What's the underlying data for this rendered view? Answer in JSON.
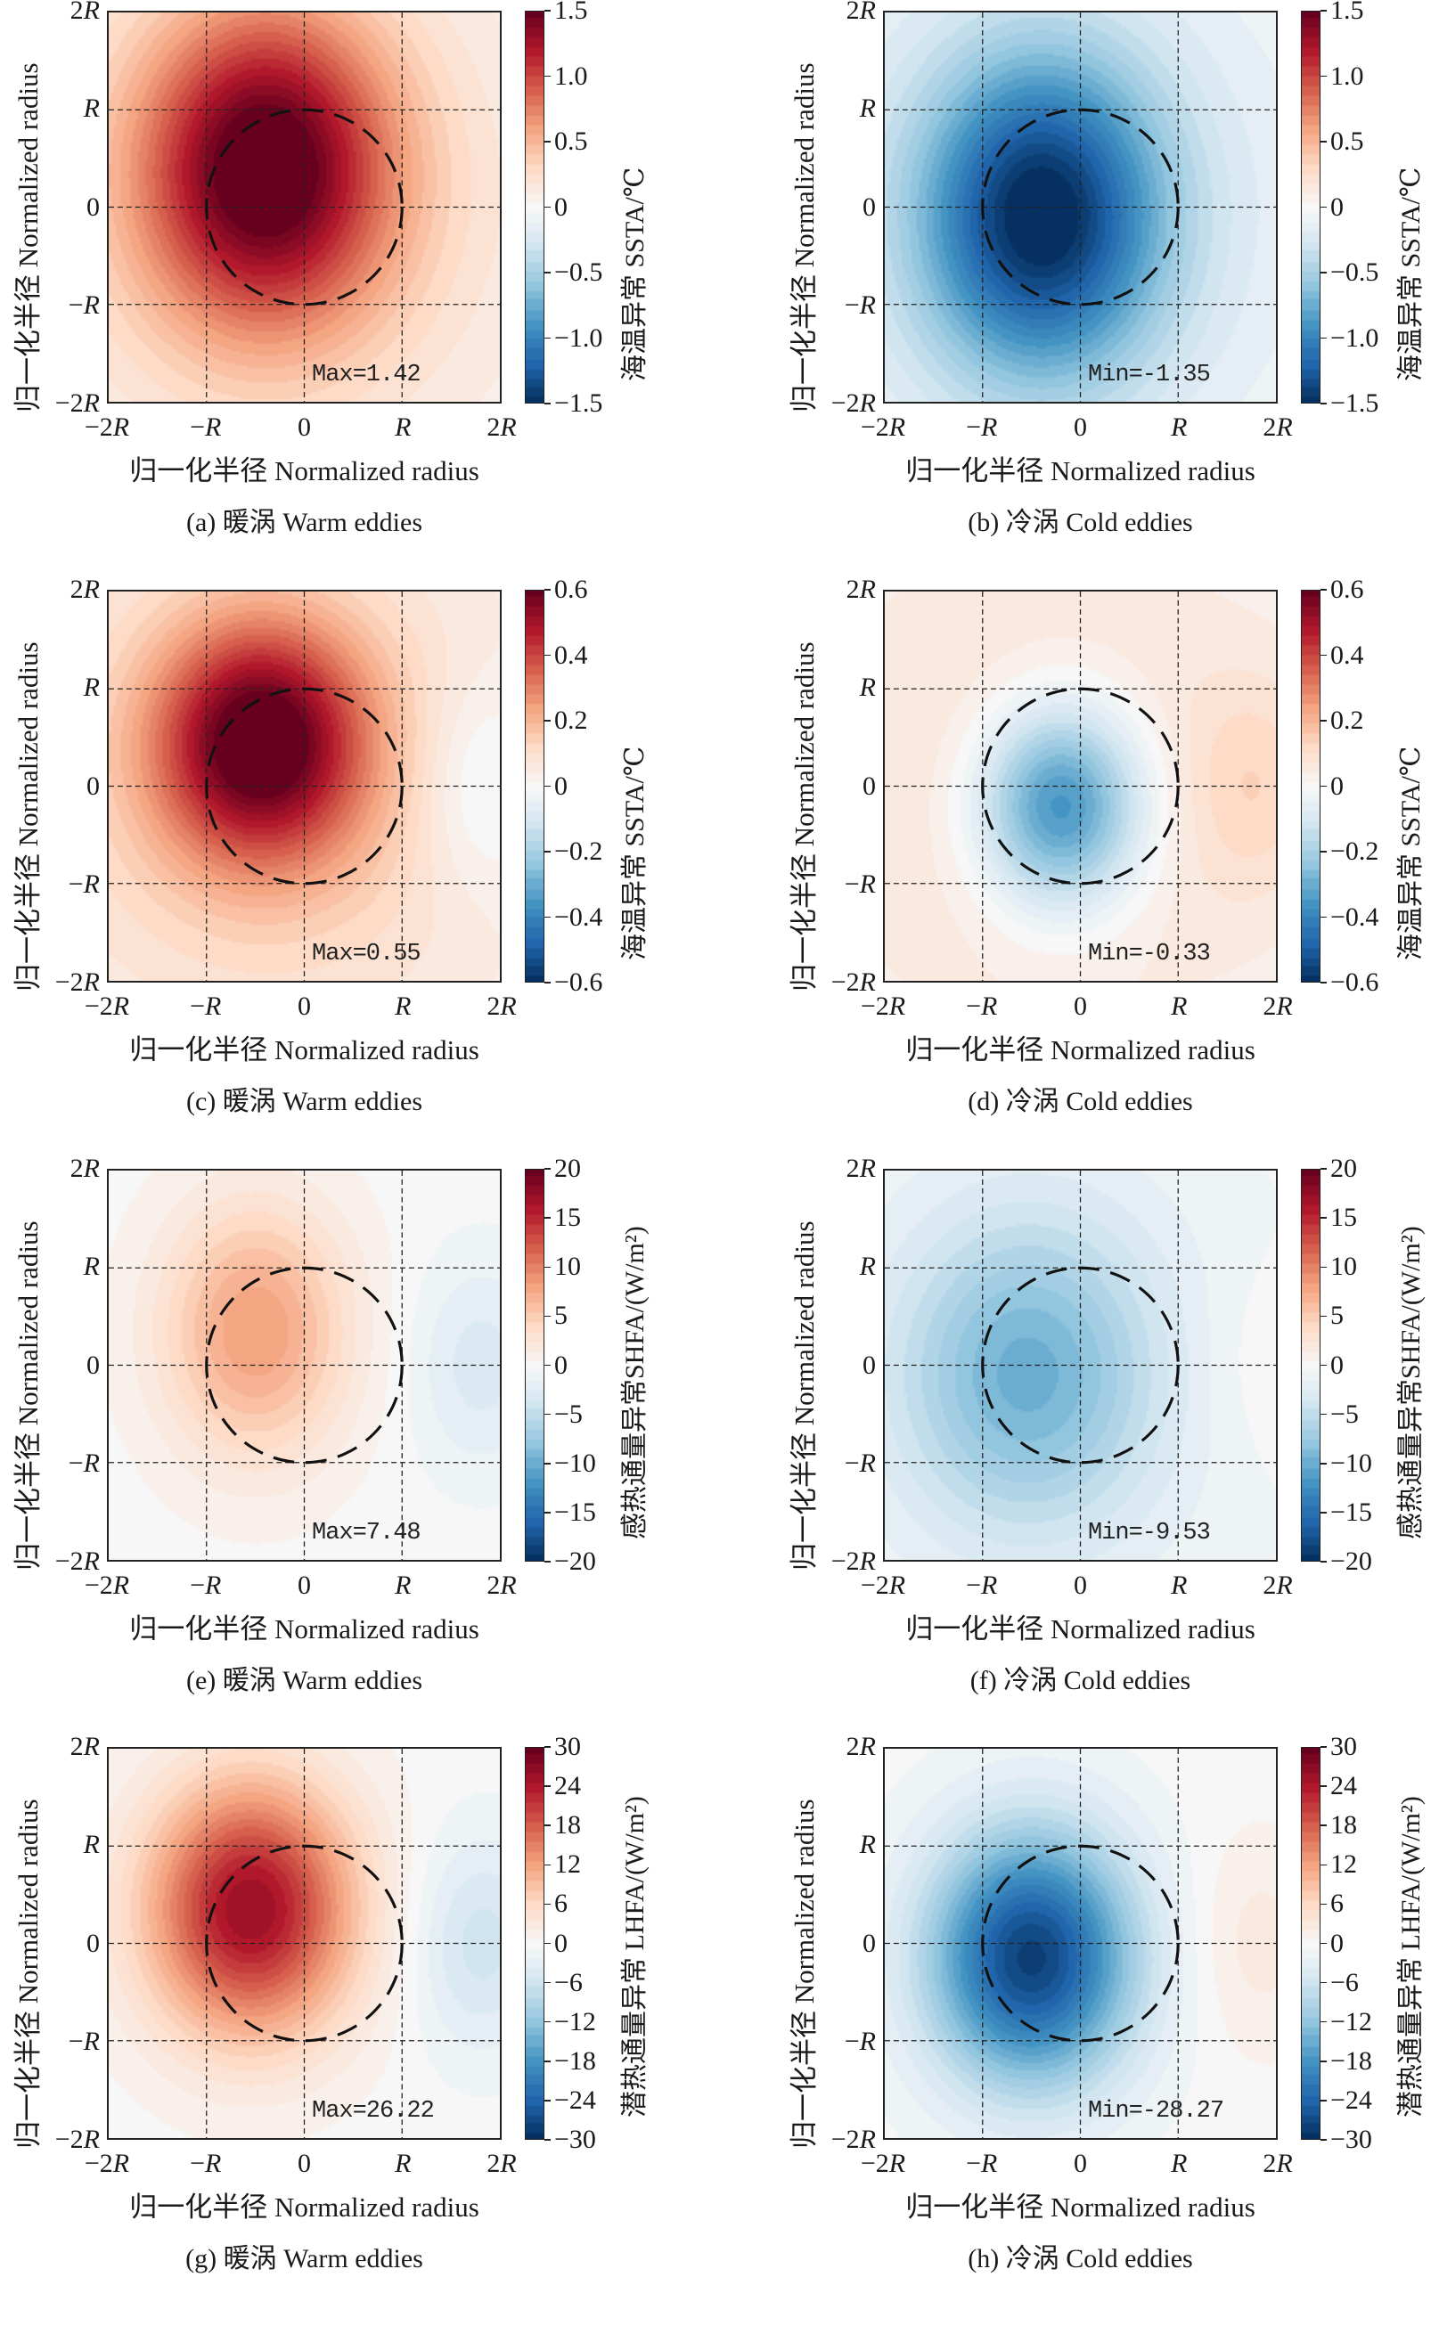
{
  "figure": {
    "xlabel": "归一化半径 Normalized radius",
    "ylabel": "归一化半径 Normalized radius",
    "ticks": [
      "−2R",
      "−R",
      "0",
      "R",
      "2R"
    ],
    "eddy_boundary": "dashed circle of radius R centered at origin",
    "grid": "dashed lines at −R, 0, R",
    "colormap": "RdBu_r",
    "colors": {
      "neg_extreme": "#1f3f73",
      "neutral": "#f2f2f2",
      "pos_extreme": "#6b1522"
    }
  },
  "chart_data": [
    {
      "type": "heatmap",
      "id": "a",
      "caption": "(a) 暖涡 Warm eddies",
      "variable": "SSTA",
      "cbar_label": "海温异常 SSTA/℃",
      "clim": [
        -1.5,
        1.5
      ],
      "cbar_ticks": [
        "1.5",
        "1.0",
        "0.5",
        "0",
        "−0.5",
        "−1.0",
        "−1.5"
      ],
      "stat_label": "Max=1.42",
      "extreme": 1.42,
      "field": {
        "peak": 1.42,
        "cx": -0.4,
        "cy": 0.4,
        "sx": 1.25,
        "sy": 1.6,
        "background": 0.3,
        "side_lobe": 0.0
      },
      "xlim": [
        -2,
        2
      ],
      "ylim": [
        -2,
        2
      ]
    },
    {
      "type": "heatmap",
      "id": "b",
      "caption": "(b) 冷涡 Cold eddies",
      "variable": "SSTA",
      "cbar_label": "海温异常 SSTA/℃",
      "clim": [
        -1.5,
        1.5
      ],
      "cbar_ticks": [
        "1.5",
        "1.0",
        "0.5",
        "0",
        "−0.5",
        "−1.0",
        "−1.5"
      ],
      "stat_label": "Min=-1.35",
      "extreme": -1.35,
      "field": {
        "peak": -1.35,
        "cx": -0.4,
        "cy": -0.1,
        "sx": 1.2,
        "sy": 1.6,
        "background": -0.25,
        "side_lobe": 0.0
      },
      "xlim": [
        -2,
        2
      ],
      "ylim": [
        -2,
        2
      ]
    },
    {
      "type": "heatmap",
      "id": "c",
      "caption": "(c) 暖涡 Warm eddies",
      "variable": "SSTA",
      "cbar_label": "海温异常 SSTA/℃",
      "clim": [
        -0.6,
        0.6
      ],
      "cbar_ticks": [
        "0.6",
        "0.4",
        "0.2",
        "0",
        "−0.2",
        "−0.4",
        "−0.6"
      ],
      "stat_label": "Max=0.55",
      "extreme": 0.55,
      "field": {
        "peak": 0.55,
        "cx": -0.45,
        "cy": 0.45,
        "sx": 1.05,
        "sy": 1.2,
        "background": 0.15,
        "side_lobe": -0.1
      },
      "xlim": [
        -2,
        2
      ],
      "ylim": [
        -2,
        2
      ]
    },
    {
      "type": "heatmap",
      "id": "d",
      "caption": "(d) 冷涡 Cold eddies",
      "variable": "SSTA",
      "cbar_label": "海温异常 SSTA/℃",
      "clim": [
        -0.6,
        0.6
      ],
      "cbar_ticks": [
        "0.6",
        "0.4",
        "0.2",
        "0",
        "−0.2",
        "−0.4",
        "−0.6"
      ],
      "stat_label": "Min=-0.33",
      "extreme": -0.33,
      "field": {
        "peak": -0.45,
        "cx": -0.2,
        "cy": -0.2,
        "sx": 0.85,
        "sy": 1.05,
        "background": 0.1,
        "side_lobe": 0.08
      },
      "xlim": [
        -2,
        2
      ],
      "ylim": [
        -2,
        2
      ]
    },
    {
      "type": "heatmap",
      "id": "e",
      "caption": "(e) 暖涡 Warm eddies",
      "variable": "SHFA",
      "cbar_label": "感热通量异常SHFA/(W/m²)",
      "clim": [
        -20,
        20
      ],
      "cbar_ticks": [
        "20",
        "15",
        "10",
        "5",
        "0",
        "−5",
        "−10",
        "−15",
        "−20"
      ],
      "stat_label": "Max=7.48",
      "extreme": 7.48,
      "field": {
        "peak": 8.5,
        "cx": -0.5,
        "cy": 0.35,
        "sx": 0.95,
        "sy": 1.3,
        "background": 0.0,
        "side_lobe": -3.0
      },
      "xlim": [
        -2,
        2
      ],
      "ylim": [
        -2,
        2
      ]
    },
    {
      "type": "heatmap",
      "id": "f",
      "caption": "(f) 冷涡 Cold eddies",
      "variable": "SHFA",
      "cbar_label": "感热通量异常SHFA/(W/m²)",
      "clim": [
        -20,
        20
      ],
      "cbar_ticks": [
        "20",
        "15",
        "10",
        "5",
        "0",
        "−5",
        "−10",
        "−15",
        "−20"
      ],
      "stat_label": "Min=-9.53",
      "extreme": -9.53,
      "field": {
        "peak": -8.5,
        "cx": -0.55,
        "cy": -0.1,
        "sx": 1.3,
        "sy": 1.6,
        "background": -1.5,
        "side_lobe": 1.0
      },
      "xlim": [
        -2,
        2
      ],
      "ylim": [
        -2,
        2
      ]
    },
    {
      "type": "heatmap",
      "id": "g",
      "caption": "(g) 暖涡 Warm eddies",
      "variable": "LHFA",
      "cbar_label": "潜热通量异常 LHFA/(W/m²)",
      "clim": [
        -30,
        30
      ],
      "cbar_ticks": [
        "30",
        "24",
        "18",
        "12",
        "6",
        "0",
        "−6",
        "−12",
        "−18",
        "−24",
        "−30"
      ],
      "stat_label": "Max=26.22",
      "extreme": 26.22,
      "field": {
        "peak": 26.22,
        "cx": -0.55,
        "cy": 0.35,
        "sx": 1.05,
        "sy": 1.3,
        "background": 0.0,
        "side_lobe": -6.0
      },
      "xlim": [
        -2,
        2
      ],
      "ylim": [
        -2,
        2
      ]
    },
    {
      "type": "heatmap",
      "id": "h",
      "caption": "(h) 冷涡 Cold eddies",
      "variable": "LHFA",
      "cbar_label": "潜热通量异常 LHFA/(W/m²)",
      "clim": [
        -30,
        30
      ],
      "cbar_ticks": [
        "30",
        "24",
        "18",
        "12",
        "6",
        "0",
        "−6",
        "−12",
        "−18",
        "−24",
        "−30"
      ],
      "stat_label": "Min=-28.27",
      "extreme": -28.27,
      "field": {
        "peak": -28.27,
        "cx": -0.5,
        "cy": -0.15,
        "sx": 1.05,
        "sy": 1.3,
        "background": 0.0,
        "side_lobe": 3.0
      },
      "xlim": [
        -2,
        2
      ],
      "ylim": [
        -2,
        2
      ]
    }
  ]
}
